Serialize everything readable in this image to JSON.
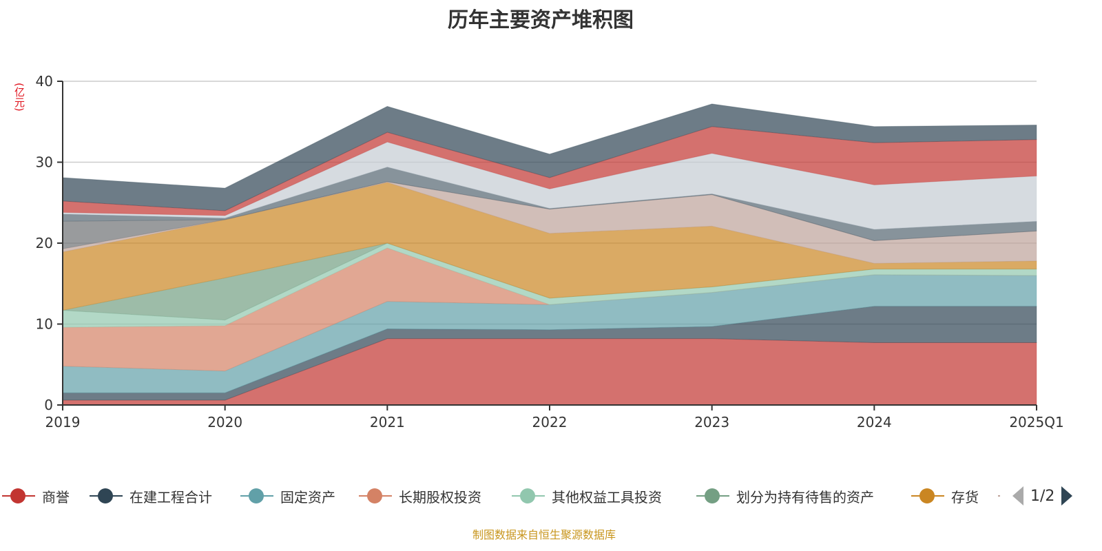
{
  "title": "历年主要资产堆积图",
  "footer": "制图数据来自恒生聚源数据库",
  "legend_page": "1/2",
  "chart_data": {
    "type": "area",
    "stacked": true,
    "title": "历年主要资产堆积图",
    "ylabel": "(亿元)",
    "ylim": [
      0,
      40
    ],
    "yticks": [
      "0",
      "10",
      "20",
      "30",
      "40"
    ],
    "categories": [
      "2019",
      "2020",
      "2021",
      "2022",
      "2023",
      "2024",
      "2025Q1"
    ],
    "grid": true,
    "legend_position": "bottom",
    "series": [
      {
        "name": "商誉",
        "color": "#c23531",
        "values": [
          0.6,
          0.6,
          8.2,
          8.2,
          8.2,
          7.7,
          7.7
        ]
      },
      {
        "name": "在建工程合计",
        "color": "#2f4554",
        "values": [
          0.9,
          0.9,
          1.2,
          1.1,
          1.5,
          4.5,
          4.5
        ]
      },
      {
        "name": "固定资产",
        "color": "#61a0a8",
        "values": [
          3.3,
          2.7,
          3.4,
          3.1,
          4.2,
          3.9,
          3.8
        ]
      },
      {
        "name": "长期股权投资",
        "color": "#d48265",
        "values": [
          4.8,
          5.6,
          6.6,
          0,
          0,
          0,
          0
        ]
      },
      {
        "name": "其他权益工具投资",
        "color": "#91c7ae",
        "values": [
          2.1,
          0.7,
          0.6,
          0.8,
          0.7,
          0.7,
          0.8
        ]
      },
      {
        "name": "划分为持有待售的资产",
        "color": "#749f83",
        "values": [
          0,
          5.2,
          0,
          0,
          0,
          0,
          0
        ]
      },
      {
        "name": "存货",
        "color": "#ca8622",
        "values": [
          7.2,
          7.2,
          7.5,
          8.0,
          7.5,
          0.7,
          1.0
        ]
      },
      {
        "color": "#bda29a",
        "values": [
          0.4,
          0,
          0.1,
          3.0,
          3.9,
          2.8,
          3.7
        ]
      },
      {
        "color": "#6e7074",
        "values": [
          3.4,
          0,
          0,
          0,
          0,
          0,
          0
        ]
      },
      {
        "color": "#546570",
        "values": [
          0.9,
          0.2,
          1.8,
          0.1,
          0.1,
          1.4,
          1.2
        ]
      },
      {
        "color": "#c4ccd3",
        "values": [
          0.2,
          0.3,
          3.1,
          2.4,
          5.0,
          5.5,
          5.6
        ]
      },
      {
        "color": "#c23531",
        "values": [
          1.4,
          0.6,
          1.2,
          1.4,
          3.3,
          5.2,
          4.5
        ]
      },
      {
        "color": "#2f4554",
        "values": [
          2.9,
          2.8,
          3.2,
          2.9,
          2.8,
          2.0,
          1.8
        ]
      }
    ]
  }
}
